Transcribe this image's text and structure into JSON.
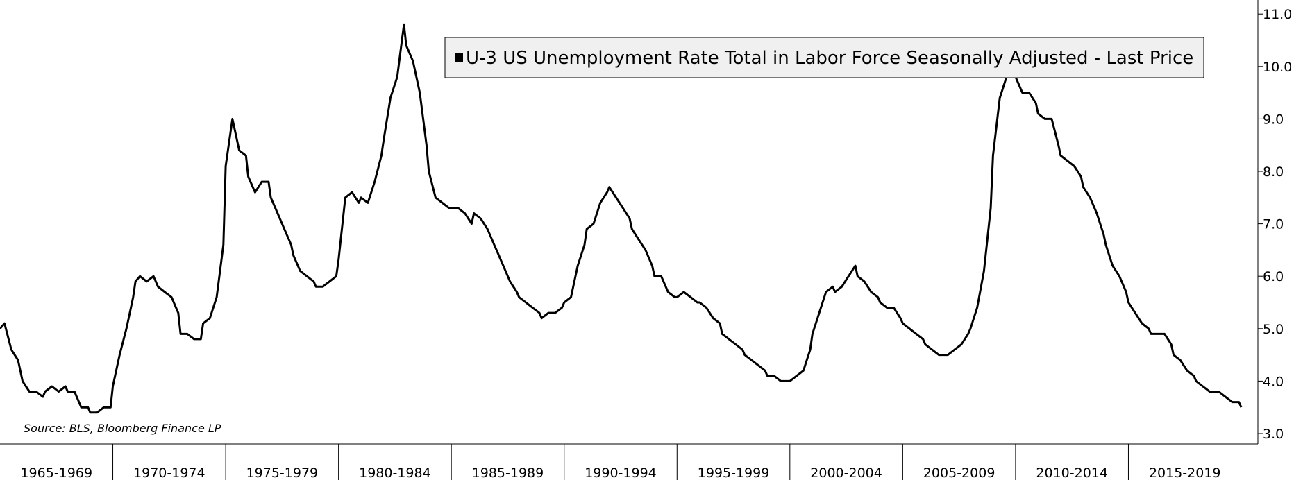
{
  "chart_data": {
    "type": "line",
    "legend": {
      "placement": "top-center",
      "entry": "U-3 US Unemployment Rate Total in Labor Force Seasonally Adjusted - Last Price",
      "swatch_color": "#000000"
    },
    "source": "Source: BLS, Bloomberg Finance LP",
    "x_period_labels": [
      "1965-1969",
      "1970-1974",
      "1975-1979",
      "1980-1984",
      "1985-1989",
      "1990-1994",
      "1995-1999",
      "2000-2004",
      "2005-2009",
      "2010-2014",
      "2015-2019"
    ],
    "y_ticks": [
      "3.0",
      "4.0",
      "5.0",
      "6.0",
      "7.0",
      "8.0",
      "9.0",
      "10.0",
      "11.0"
    ],
    "y_axis_side": "right",
    "ylim": [
      2.9,
      11.2
    ],
    "xlim": [
      1965.0,
      2020.2
    ],
    "grid": false,
    "line_color": "#000000",
    "series": [
      {
        "points": [
          [
            1965.0,
            5.0
          ],
          [
            1965.2,
            5.1
          ],
          [
            1965.5,
            4.6
          ],
          [
            1965.8,
            4.4
          ],
          [
            1966.0,
            4.0
          ],
          [
            1966.3,
            3.8
          ],
          [
            1966.6,
            3.8
          ],
          [
            1966.9,
            3.7
          ],
          [
            1967.0,
            3.8
          ],
          [
            1967.3,
            3.9
          ],
          [
            1967.6,
            3.8
          ],
          [
            1967.9,
            3.9
          ],
          [
            1968.0,
            3.8
          ],
          [
            1968.3,
            3.8
          ],
          [
            1968.6,
            3.5
          ],
          [
            1968.9,
            3.5
          ],
          [
            1969.0,
            3.4
          ],
          [
            1969.3,
            3.4
          ],
          [
            1969.6,
            3.5
          ],
          [
            1969.9,
            3.5
          ],
          [
            1970.0,
            3.9
          ],
          [
            1970.3,
            4.5
          ],
          [
            1970.6,
            5.0
          ],
          [
            1970.9,
            5.6
          ],
          [
            1971.0,
            5.9
          ],
          [
            1971.2,
            6.0
          ],
          [
            1971.5,
            5.9
          ],
          [
            1971.8,
            6.0
          ],
          [
            1972.0,
            5.8
          ],
          [
            1972.3,
            5.7
          ],
          [
            1972.6,
            5.6
          ],
          [
            1972.9,
            5.3
          ],
          [
            1973.0,
            4.9
          ],
          [
            1973.3,
            4.9
          ],
          [
            1973.6,
            4.8
          ],
          [
            1973.9,
            4.8
          ],
          [
            1974.0,
            5.1
          ],
          [
            1974.3,
            5.2
          ],
          [
            1974.6,
            5.6
          ],
          [
            1974.9,
            6.6
          ],
          [
            1975.0,
            8.1
          ],
          [
            1975.3,
            9.0
          ],
          [
            1975.6,
            8.4
          ],
          [
            1975.9,
            8.3
          ],
          [
            1976.0,
            7.9
          ],
          [
            1976.3,
            7.6
          ],
          [
            1976.6,
            7.8
          ],
          [
            1976.9,
            7.8
          ],
          [
            1977.0,
            7.5
          ],
          [
            1977.3,
            7.2
          ],
          [
            1977.6,
            6.9
          ],
          [
            1977.9,
            6.6
          ],
          [
            1978.0,
            6.4
          ],
          [
            1978.3,
            6.1
          ],
          [
            1978.6,
            6.0
          ],
          [
            1978.9,
            5.9
          ],
          [
            1979.0,
            5.8
          ],
          [
            1979.3,
            5.8
          ],
          [
            1979.6,
            5.9
          ],
          [
            1979.9,
            6.0
          ],
          [
            1980.0,
            6.3
          ],
          [
            1980.3,
            7.5
          ],
          [
            1980.6,
            7.6
          ],
          [
            1980.9,
            7.4
          ],
          [
            1981.0,
            7.5
          ],
          [
            1981.3,
            7.4
          ],
          [
            1981.6,
            7.8
          ],
          [
            1981.9,
            8.3
          ],
          [
            1982.0,
            8.6
          ],
          [
            1982.3,
            9.4
          ],
          [
            1982.6,
            9.8
          ],
          [
            1982.9,
            10.8
          ],
          [
            1983.0,
            10.4
          ],
          [
            1983.3,
            10.1
          ],
          [
            1983.6,
            9.5
          ],
          [
            1983.9,
            8.5
          ],
          [
            1984.0,
            8.0
          ],
          [
            1984.3,
            7.5
          ],
          [
            1984.6,
            7.4
          ],
          [
            1984.9,
            7.3
          ],
          [
            1985.0,
            7.3
          ],
          [
            1985.3,
            7.3
          ],
          [
            1985.6,
            7.2
          ],
          [
            1985.9,
            7.0
          ],
          [
            1986.0,
            7.2
          ],
          [
            1986.3,
            7.1
          ],
          [
            1986.6,
            6.9
          ],
          [
            1986.9,
            6.6
          ],
          [
            1987.0,
            6.5
          ],
          [
            1987.3,
            6.2
          ],
          [
            1987.6,
            5.9
          ],
          [
            1987.9,
            5.7
          ],
          [
            1988.0,
            5.6
          ],
          [
            1988.3,
            5.5
          ],
          [
            1988.6,
            5.4
          ],
          [
            1988.9,
            5.3
          ],
          [
            1989.0,
            5.2
          ],
          [
            1989.3,
            5.3
          ],
          [
            1989.6,
            5.3
          ],
          [
            1989.9,
            5.4
          ],
          [
            1990.0,
            5.5
          ],
          [
            1990.3,
            5.6
          ],
          [
            1990.6,
            6.2
          ],
          [
            1990.9,
            6.6
          ],
          [
            1991.0,
            6.9
          ],
          [
            1991.3,
            7.0
          ],
          [
            1991.6,
            7.4
          ],
          [
            1991.9,
            7.6
          ],
          [
            1992.0,
            7.7
          ],
          [
            1992.3,
            7.5
          ],
          [
            1992.6,
            7.3
          ],
          [
            1992.9,
            7.1
          ],
          [
            1993.0,
            6.9
          ],
          [
            1993.3,
            6.7
          ],
          [
            1993.6,
            6.5
          ],
          [
            1993.9,
            6.2
          ],
          [
            1994.0,
            6.0
          ],
          [
            1994.3,
            6.0
          ],
          [
            1994.6,
            5.7
          ],
          [
            1994.9,
            5.6
          ],
          [
            1995.0,
            5.6
          ],
          [
            1995.3,
            5.7
          ],
          [
            1995.6,
            5.6
          ],
          [
            1995.9,
            5.5
          ],
          [
            1996.0,
            5.5
          ],
          [
            1996.3,
            5.4
          ],
          [
            1996.6,
            5.2
          ],
          [
            1996.9,
            5.1
          ],
          [
            1997.0,
            4.9
          ],
          [
            1997.3,
            4.8
          ],
          [
            1997.6,
            4.7
          ],
          [
            1997.9,
            4.6
          ],
          [
            1998.0,
            4.5
          ],
          [
            1998.3,
            4.4
          ],
          [
            1998.6,
            4.3
          ],
          [
            1998.9,
            4.2
          ],
          [
            1999.0,
            4.1
          ],
          [
            1999.3,
            4.1
          ],
          [
            1999.6,
            4.0
          ],
          [
            1999.9,
            4.0
          ],
          [
            2000.0,
            4.0
          ],
          [
            2000.3,
            4.1
          ],
          [
            2000.6,
            4.2
          ],
          [
            2000.9,
            4.6
          ],
          [
            2001.0,
            4.9
          ],
          [
            2001.3,
            5.3
          ],
          [
            2001.6,
            5.7
          ],
          [
            2001.9,
            5.8
          ],
          [
            2002.0,
            5.7
          ],
          [
            2002.3,
            5.8
          ],
          [
            2002.6,
            6.0
          ],
          [
            2002.9,
            6.2
          ],
          [
            2003.0,
            6.0
          ],
          [
            2003.3,
            5.9
          ],
          [
            2003.6,
            5.7
          ],
          [
            2003.9,
            5.6
          ],
          [
            2004.0,
            5.5
          ],
          [
            2004.3,
            5.4
          ],
          [
            2004.6,
            5.4
          ],
          [
            2004.9,
            5.2
          ],
          [
            2005.0,
            5.1
          ],
          [
            2005.3,
            5.0
          ],
          [
            2005.6,
            4.9
          ],
          [
            2005.9,
            4.8
          ],
          [
            2006.0,
            4.7
          ],
          [
            2006.3,
            4.6
          ],
          [
            2006.6,
            4.5
          ],
          [
            2006.9,
            4.5
          ],
          [
            2007.0,
            4.5
          ],
          [
            2007.3,
            4.6
          ],
          [
            2007.6,
            4.7
          ],
          [
            2007.9,
            4.9
          ],
          [
            2008.0,
            5.0
          ],
          [
            2008.3,
            5.4
          ],
          [
            2008.6,
            6.1
          ],
          [
            2008.9,
            7.3
          ],
          [
            2009.0,
            8.3
          ],
          [
            2009.3,
            9.4
          ],
          [
            2009.6,
            9.8
          ],
          [
            2009.9,
            10.0
          ],
          [
            2010.0,
            9.8
          ],
          [
            2010.3,
            9.5
          ],
          [
            2010.6,
            9.5
          ],
          [
            2010.9,
            9.3
          ],
          [
            2011.0,
            9.1
          ],
          [
            2011.3,
            9.0
          ],
          [
            2011.6,
            9.0
          ],
          [
            2011.9,
            8.5
          ],
          [
            2012.0,
            8.3
          ],
          [
            2012.3,
            8.2
          ],
          [
            2012.6,
            8.1
          ],
          [
            2012.9,
            7.9
          ],
          [
            2013.0,
            7.7
          ],
          [
            2013.3,
            7.5
          ],
          [
            2013.6,
            7.2
          ],
          [
            2013.9,
            6.8
          ],
          [
            2014.0,
            6.6
          ],
          [
            2014.3,
            6.2
          ],
          [
            2014.6,
            6.0
          ],
          [
            2014.9,
            5.7
          ],
          [
            2015.0,
            5.5
          ],
          [
            2015.3,
            5.3
          ],
          [
            2015.6,
            5.1
          ],
          [
            2015.9,
            5.0
          ],
          [
            2016.0,
            4.9
          ],
          [
            2016.3,
            4.9
          ],
          [
            2016.6,
            4.9
          ],
          [
            2016.9,
            4.7
          ],
          [
            2017.0,
            4.5
          ],
          [
            2017.3,
            4.4
          ],
          [
            2017.6,
            4.2
          ],
          [
            2017.9,
            4.1
          ],
          [
            2018.0,
            4.0
          ],
          [
            2018.3,
            3.9
          ],
          [
            2018.6,
            3.8
          ],
          [
            2018.9,
            3.8
          ],
          [
            2019.0,
            3.8
          ],
          [
            2019.3,
            3.7
          ],
          [
            2019.6,
            3.6
          ],
          [
            2019.9,
            3.6
          ],
          [
            2020.0,
            3.5
          ]
        ]
      }
    ]
  }
}
